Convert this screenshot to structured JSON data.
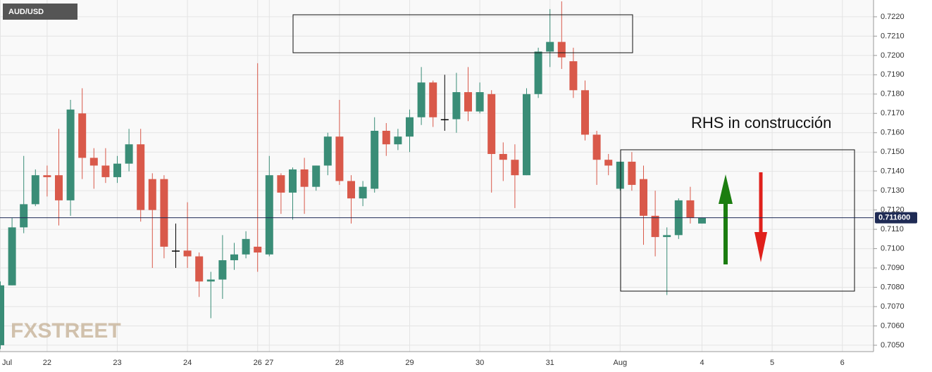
{
  "chart_data": {
    "type": "candlestick",
    "symbol": "AUD/USD",
    "watermark": "FXSTREET",
    "annotation": "RHS in construcción",
    "colors": {
      "up": "#3a8d77",
      "down": "#d9594a",
      "flat": "#000000"
    },
    "categories": [
      "Jul",
      null,
      null,
      null,
      "22",
      null,
      null,
      null,
      null,
      null,
      "23",
      null,
      null,
      null,
      null,
      null,
      "24",
      null,
      null,
      null,
      null,
      null,
      "26",
      "27",
      null,
      null,
      null,
      null,
      null,
      "28",
      null,
      null,
      null,
      null,
      null,
      "29",
      null,
      null,
      null,
      null,
      null,
      "30",
      null,
      null,
      null,
      null,
      null,
      "31",
      null,
      null,
      null,
      null,
      null,
      "Aug",
      null,
      null,
      null,
      null,
      null,
      null,
      "4",
      null,
      null,
      null,
      null,
      null,
      "5",
      null,
      null,
      null,
      null,
      null,
      "6",
      null,
      null
    ],
    "open": [
      0.705,
      0.7081,
      0.7111,
      0.7123,
      0.7138,
      0.7138,
      0.7125,
      0.717,
      0.7147,
      0.7143,
      0.7137,
      0.7144,
      0.7154,
      0.7136,
      0.7136,
      0.7099,
      0.7099,
      0.7096,
      0.7083,
      0.7084,
      0.7094,
      0.7097,
      0.7101,
      0.7097,
      0.7138,
      0.7129,
      0.7141,
      0.7132,
      0.7143,
      0.7158,
      0.7135,
      0.7126,
      0.7131,
      0.7161,
      0.7154,
      0.7158,
      0.7168,
      0.7186,
      0.7167,
      0.7167,
      0.7181,
      0.7171,
      0.718,
      0.7149,
      0.7146,
      0.7138,
      0.718,
      0.7202,
      0.7207,
      0.7197,
      0.7182,
      0.7159,
      0.7146,
      0.7131,
      0.7145,
      0.7136,
      0.7117,
      0.7106,
      0.7107,
      0.7125,
      0.7113,
      null,
      null,
      null,
      null,
      null,
      null,
      null,
      null,
      null,
      null,
      null,
      null,
      null,
      null
    ],
    "high": [
      0.7083,
      0.7116,
      0.7148,
      0.7141,
      0.7143,
      0.7162,
      0.7177,
      0.7183,
      0.7152,
      0.7152,
      0.7148,
      0.7162,
      0.7162,
      0.7139,
      0.7138,
      0.7113,
      0.7124,
      0.7098,
      0.7088,
      0.7107,
      0.7103,
      0.7109,
      0.7196,
      0.7148,
      0.7139,
      0.7142,
      0.7147,
      0.7143,
      0.716,
      0.7177,
      0.7138,
      0.7135,
      0.7168,
      0.7165,
      0.7162,
      0.7172,
      0.7194,
      0.7187,
      0.719,
      0.7191,
      0.7194,
      0.7186,
      0.7182,
      0.7155,
      0.7154,
      0.7183,
      0.7204,
      0.7224,
      0.7228,
      0.7204,
      0.7187,
      0.7161,
      0.7149,
      0.7145,
      0.715,
      0.7143,
      0.713,
      0.7111,
      0.7126,
      0.7132,
      0.7116,
      null,
      null,
      null,
      null,
      null,
      null,
      null,
      null,
      null,
      null,
      null,
      null,
      null,
      null
    ],
    "low": [
      0.7048,
      0.7081,
      0.7108,
      0.7122,
      0.7127,
      0.7112,
      0.7117,
      0.7136,
      0.7131,
      0.7134,
      0.7134,
      0.714,
      0.7114,
      0.709,
      0.7095,
      0.709,
      0.709,
      0.7075,
      0.7064,
      0.7074,
      0.7089,
      0.7095,
      0.7088,
      0.7096,
      0.7118,
      0.7115,
      0.7118,
      0.713,
      0.7138,
      0.7133,
      0.7113,
      0.7122,
      0.7129,
      0.7148,
      0.7151,
      0.715,
      0.7164,
      0.7163,
      0.7161,
      0.716,
      0.7166,
      0.717,
      0.7129,
      0.7135,
      0.7121,
      0.7138,
      0.7178,
      0.7194,
      0.7193,
      0.7178,
      0.7156,
      0.7133,
      0.7138,
      0.713,
      0.713,
      0.7102,
      0.7096,
      0.7076,
      0.7105,
      0.7113,
      0.7113,
      null,
      null,
      null,
      null,
      null,
      null,
      null,
      null,
      null,
      null,
      null,
      null,
      null,
      null
    ],
    "close": [
      0.7081,
      0.7111,
      0.7123,
      0.7138,
      0.7137,
      0.7125,
      0.7172,
      0.7147,
      0.7143,
      0.7137,
      0.7144,
      0.7154,
      0.712,
      0.712,
      0.7101,
      0.7099,
      0.7096,
      0.7083,
      0.7084,
      0.7094,
      0.7097,
      0.7105,
      0.7098,
      0.7138,
      0.7129,
      0.7141,
      0.7132,
      0.7143,
      0.7158,
      0.7135,
      0.7126,
      0.7132,
      0.7161,
      0.7154,
      0.7158,
      0.7168,
      0.7186,
      0.7168,
      0.7167,
      0.7181,
      0.7171,
      0.7181,
      0.7149,
      0.7146,
      0.7138,
      0.718,
      0.7202,
      0.7207,
      0.7199,
      0.7182,
      0.7159,
      0.7146,
      0.7143,
      0.7145,
      0.7133,
      0.7117,
      0.7106,
      0.7107,
      0.7125,
      0.7116,
      0.7116,
      null,
      null,
      null,
      null,
      null,
      null,
      null,
      null,
      null,
      null,
      null,
      null,
      null,
      null
    ],
    "last": {
      "value": 0.7116,
      "label": "0.711600"
    },
    "ylim": [
      0.70467,
      0.72287
    ],
    "yticks": [
      {
        "value": 0.705,
        "label": "0.7050"
      },
      {
        "value": 0.706,
        "label": "0.7060"
      },
      {
        "value": 0.707,
        "label": "0.7070"
      },
      {
        "value": 0.708,
        "label": "0.7080"
      },
      {
        "value": 0.709,
        "label": "0.7090"
      },
      {
        "value": 0.71,
        "label": "0.7100"
      },
      {
        "value": 0.711,
        "label": "0.7110"
      },
      {
        "value": 0.712,
        "label": "0.7120"
      },
      {
        "value": 0.713,
        "label": "0.7130"
      },
      {
        "value": 0.714,
        "label": "0.7140"
      },
      {
        "value": 0.715,
        "label": "0.7150"
      },
      {
        "value": 0.716,
        "label": "0.7160"
      },
      {
        "value": 0.717,
        "label": "0.7170"
      },
      {
        "value": 0.718,
        "label": "0.7180"
      },
      {
        "value": 0.719,
        "label": "0.7190"
      },
      {
        "value": 0.72,
        "label": "0.7200"
      },
      {
        "value": 0.721,
        "label": "0.7210"
      },
      {
        "value": 0.722,
        "label": "0.7220"
      }
    ],
    "grid": true
  }
}
